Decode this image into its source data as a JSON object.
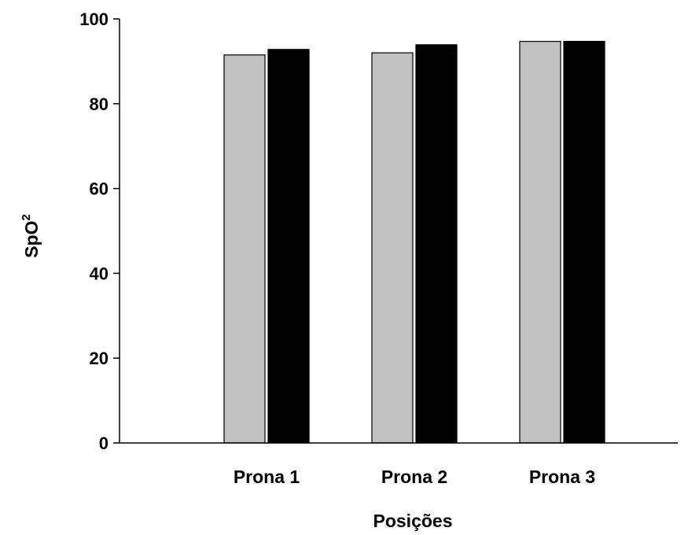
{
  "chart_data": {
    "type": "bar",
    "categories": [
      "Prona 1",
      "Prona 2",
      "Prona 3"
    ],
    "series": [
      {
        "values": [
          91.5,
          92.0,
          94.7
        ],
        "color": "#c0c0c0"
      },
      {
        "values": [
          92.8,
          93.9,
          94.7
        ],
        "color": "#000000"
      }
    ],
    "xlabel": "Posições",
    "ylabel": {
      "base": "SpO",
      "superscript": "2"
    },
    "ylim": [
      0,
      100
    ],
    "yticks": [
      "0",
      "20",
      "40",
      "60",
      "80",
      "100"
    ],
    "grid": false,
    "legend": "none"
  }
}
